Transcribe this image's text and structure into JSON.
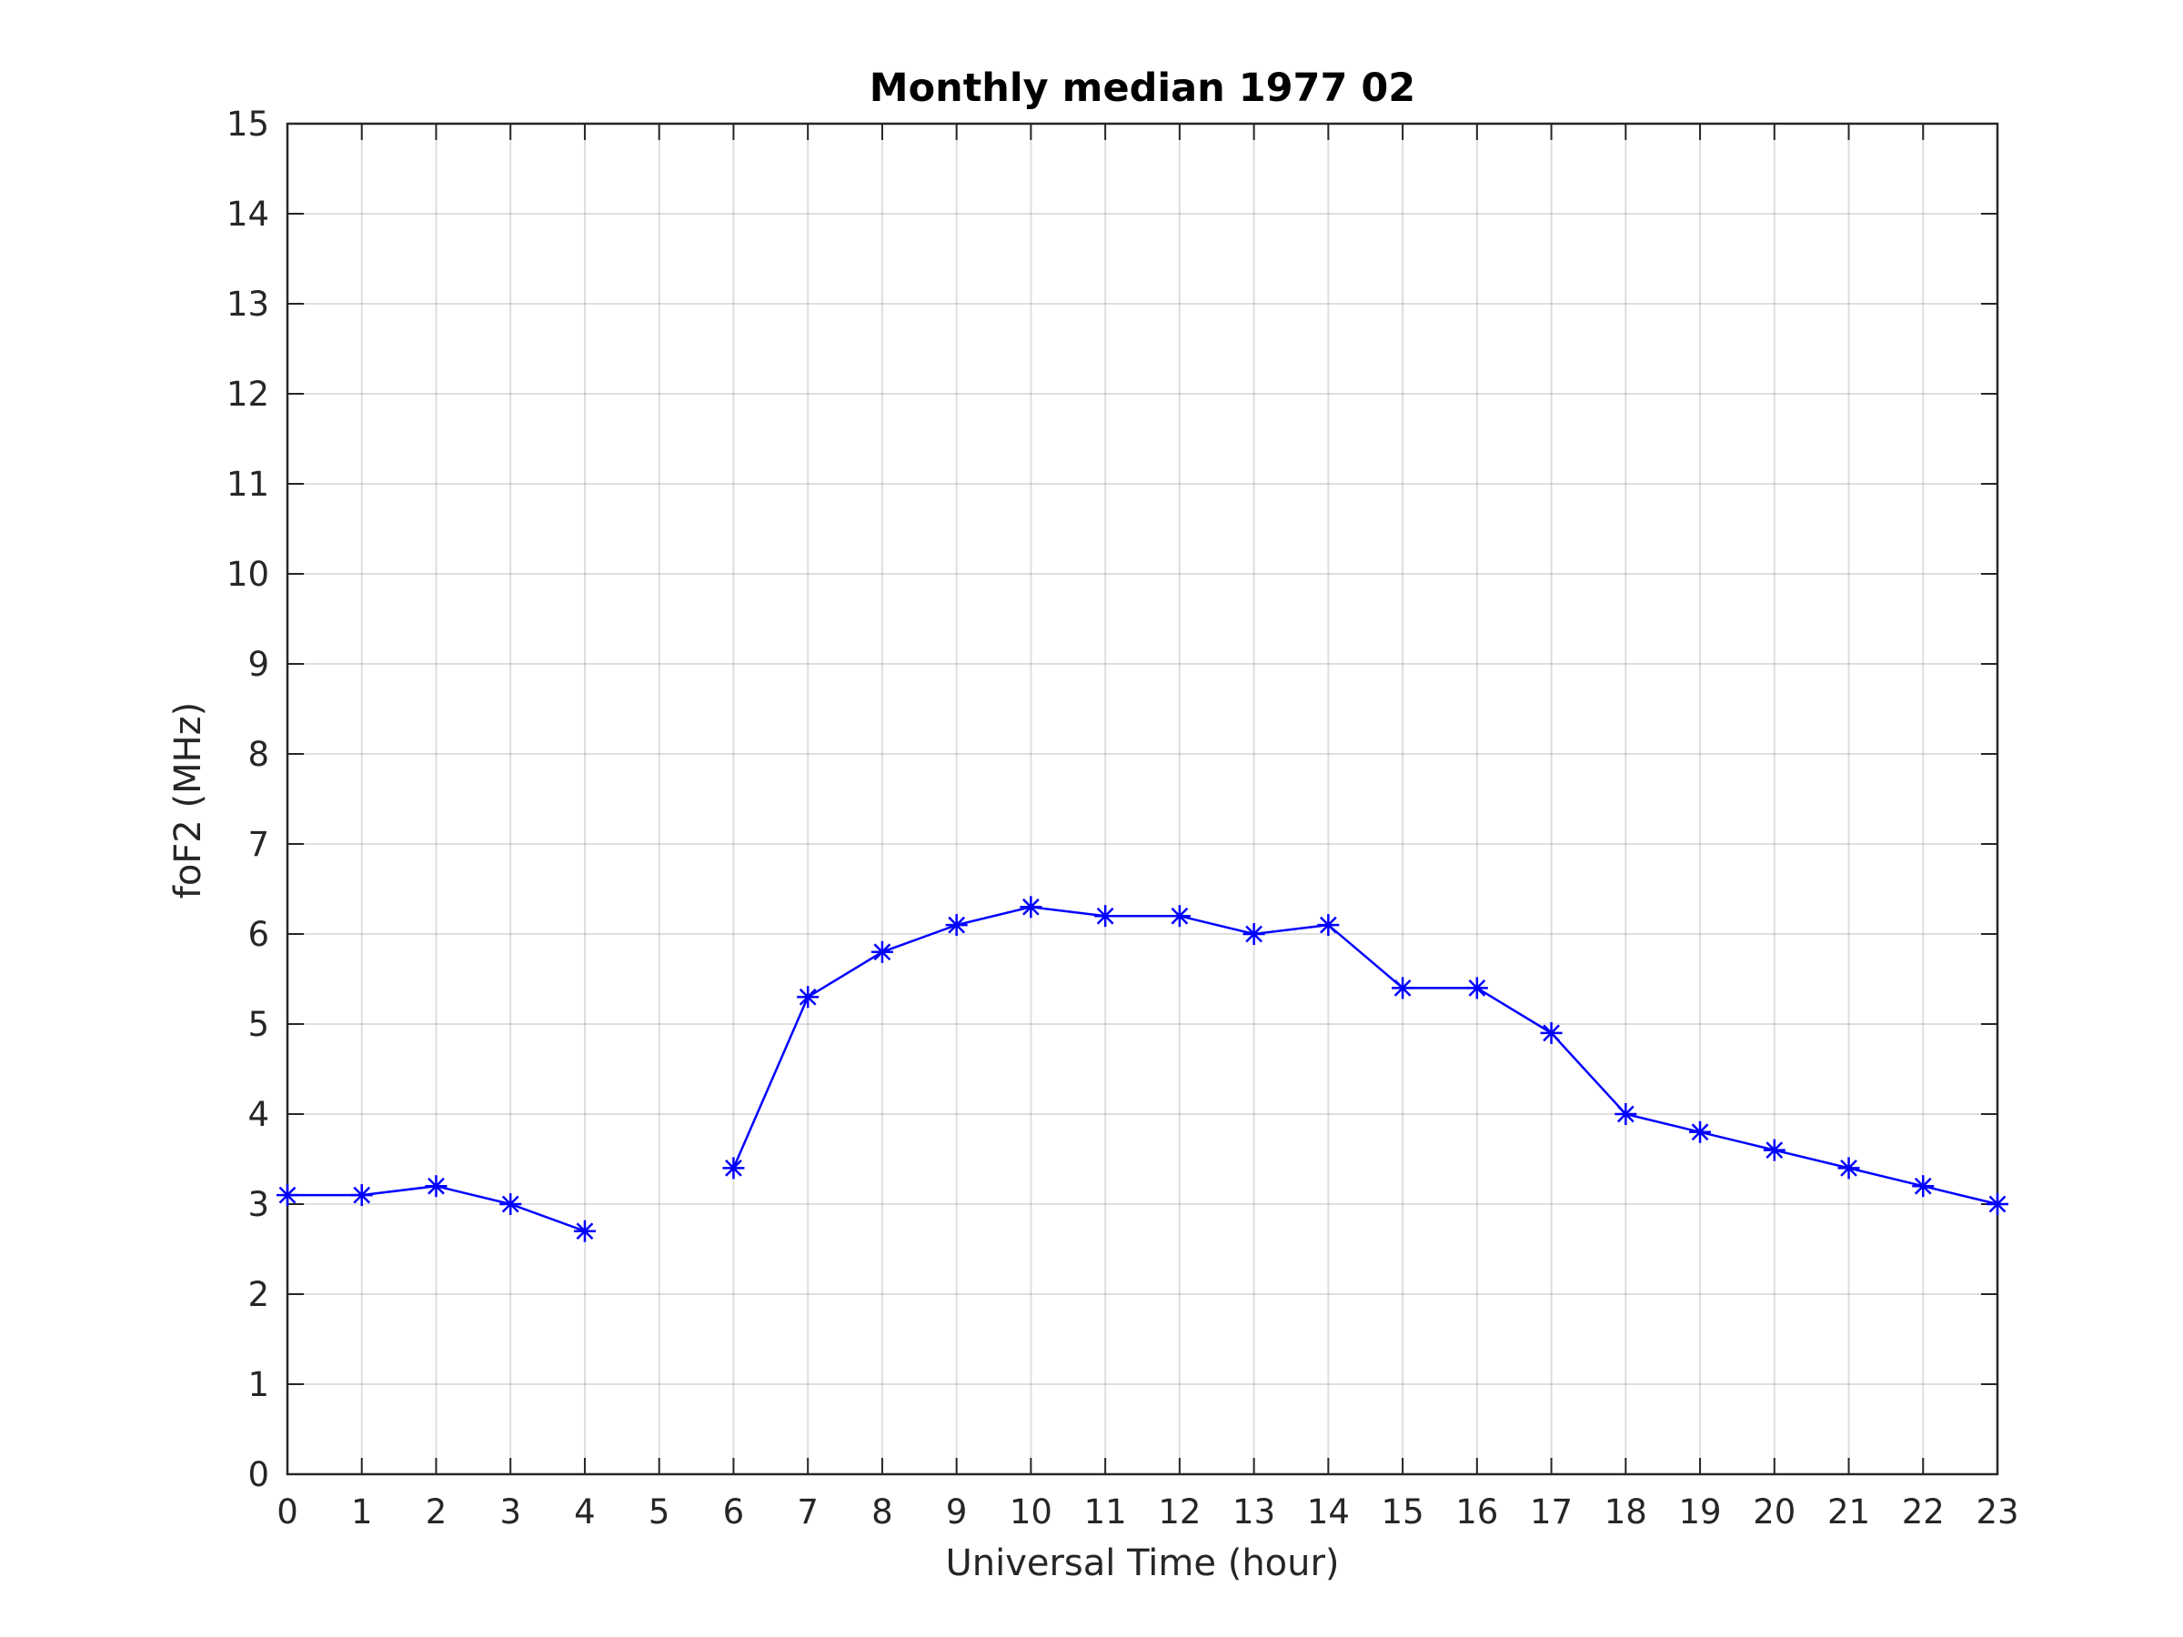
{
  "chart_data": {
    "type": "line",
    "title": "Monthly median 1977 02",
    "xlabel": "Universal Time (hour)",
    "ylabel": "foF2 (MHz)",
    "xlim": [
      0,
      23
    ],
    "ylim": [
      0,
      15
    ],
    "x_ticks": [
      "0",
      "1",
      "2",
      "3",
      "4",
      "5",
      "6",
      "7",
      "8",
      "9",
      "10",
      "11",
      "12",
      "13",
      "14",
      "15",
      "16",
      "17",
      "18",
      "19",
      "20",
      "21",
      "22",
      "23"
    ],
    "y_ticks": [
      "0",
      "1",
      "2",
      "3",
      "4",
      "5",
      "6",
      "7",
      "8",
      "9",
      "10",
      "11",
      "12",
      "13",
      "14",
      "15"
    ],
    "grid": true,
    "legend": false,
    "marker": "asterisk",
    "series": [
      {
        "color": "#0000ff",
        "points": [
          {
            "x": 0,
            "y": 3.1
          },
          {
            "x": 1,
            "y": 3.1
          },
          {
            "x": 2,
            "y": 3.2
          },
          {
            "x": 3,
            "y": 3.0
          },
          {
            "x": 4,
            "y": 2.7
          },
          {
            "x": 5,
            "y": null
          },
          {
            "x": 6,
            "y": 3.4
          },
          {
            "x": 7,
            "y": 5.3
          },
          {
            "x": 8,
            "y": 5.8
          },
          {
            "x": 9,
            "y": 6.1
          },
          {
            "x": 10,
            "y": 6.3
          },
          {
            "x": 11,
            "y": 6.2
          },
          {
            "x": 12,
            "y": 6.2
          },
          {
            "x": 13,
            "y": 6.0
          },
          {
            "x": 14,
            "y": 6.1
          },
          {
            "x": 15,
            "y": 5.4
          },
          {
            "x": 16,
            "y": 5.4
          },
          {
            "x": 17,
            "y": 4.9
          },
          {
            "x": 18,
            "y": 4.0
          },
          {
            "x": 19,
            "y": 3.8
          },
          {
            "x": 20,
            "y": 3.6
          },
          {
            "x": 21,
            "y": 3.4
          },
          {
            "x": 22,
            "y": 3.2
          },
          {
            "x": 23,
            "y": 3.0
          }
        ]
      }
    ]
  }
}
